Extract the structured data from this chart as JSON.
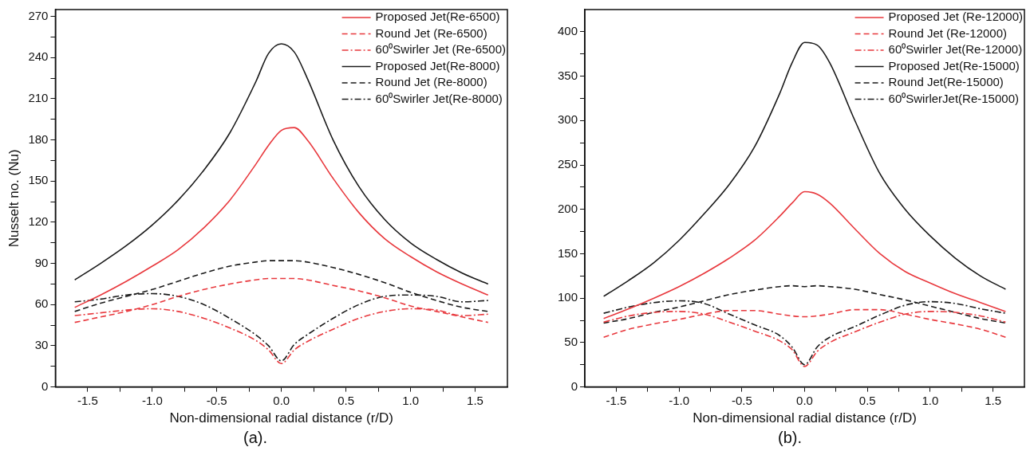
{
  "chart_data": [
    {
      "type": "line",
      "title": "(a).",
      "xlabel": "Non-dimensional radial distance (r/D)",
      "ylabel": "Nusselt no. (Nu)",
      "legend": "top right",
      "grid": false,
      "marker": "none",
      "x": [
        -1.6,
        -1.4,
        -1.2,
        -1.0,
        -0.8,
        -0.6,
        -0.4,
        -0.2,
        -0.1,
        0,
        0.1,
        0.2,
        0.4,
        0.6,
        0.8,
        1.0,
        1.2,
        1.4,
        1.6
      ],
      "xlim": [
        -1.75,
        1.75
      ],
      "xticks": [
        -1.5,
        {
          "value": -1.25,
          "label": null
        },
        {
          "value": -1,
          "label": "-1.0"
        },
        {
          "value": -0.75,
          "label": null
        },
        -0.5,
        {
          "value": -0.25,
          "label": null
        },
        {
          "value": 0,
          "label": "0.0"
        },
        {
          "value": 0.25,
          "label": null
        },
        0.5,
        {
          "value": 0.75,
          "label": null
        },
        {
          "value": 1,
          "label": "1.0"
        },
        {
          "value": 1.25,
          "label": null
        },
        1.5
      ],
      "ylim": [
        0,
        275
      ],
      "yticks": [
        0,
        {
          "value": 15,
          "label": null
        },
        30,
        {
          "value": 45,
          "label": null
        },
        60,
        {
          "value": 75,
          "label": null
        },
        90,
        {
          "value": 105,
          "label": null
        },
        120,
        {
          "value": 135,
          "label": null
        },
        150,
        {
          "value": 165,
          "label": null
        },
        180,
        {
          "value": 195,
          "label": null
        },
        210,
        {
          "value": 225,
          "label": null
        },
        240,
        {
          "value": 255,
          "label": null
        },
        270
      ],
      "series": [
        {
          "name": "Proposed Jet(Re-6500)",
          "color": "#e8383d",
          "line_style": "solid",
          "values": [
            58,
            67,
            77,
            88,
            100,
            116,
            136,
            162,
            176,
            187,
            189,
            180,
            152,
            127,
            108,
            95,
            84,
            75,
            67
          ]
        },
        {
          "name": "Round Jet (Re-6500)",
          "color": "#e8383d",
          "line_style": "dashed",
          "values": [
            47,
            51,
            55,
            60,
            66,
            71,
            75,
            78,
            79,
            79,
            79,
            78,
            74,
            70,
            65,
            59,
            55,
            51,
            47
          ]
        },
        {
          "name": "60⁰Swirler Jet (Re-6500)",
          "color": "#e8383d",
          "line_style": "dashdot",
          "values": [
            52,
            54,
            56,
            57,
            55,
            50,
            43,
            34,
            27,
            17,
            27,
            33,
            42,
            50,
            55,
            57,
            56,
            52,
            53
          ]
        },
        {
          "name": "Proposed Jet(Re-8000)",
          "color": "#1a1a1a",
          "line_style": "solid",
          "values": [
            78,
            90,
            103,
            118,
            136,
            158,
            185,
            222,
            243,
            250,
            244,
            225,
            180,
            146,
            122,
            105,
            93,
            83,
            75
          ]
        },
        {
          "name": "Round Jet (Re-8000)",
          "color": "#1a1a1a",
          "line_style": "dashed",
          "values": [
            55,
            61,
            66,
            71,
            77,
            83,
            88,
            91,
            92,
            92,
            92,
            91,
            87,
            82,
            76,
            69,
            63,
            58,
            55
          ]
        },
        {
          "name": "60⁰Swirler Jet(Re-8000)",
          "color": "#1a1a1a",
          "line_style": "dashdot",
          "values": [
            62,
            64,
            67,
            68,
            66,
            60,
            50,
            38,
            30,
            19,
            31,
            38,
            50,
            60,
            66,
            67,
            66,
            62,
            63
          ]
        }
      ]
    },
    {
      "type": "line",
      "title": "(b).",
      "xlabel": "Non-dimensional radial distance (r/D)",
      "legend": "top right",
      "grid": false,
      "marker": "none",
      "x": [
        -1.6,
        -1.4,
        -1.2,
        -1.0,
        -0.8,
        -0.6,
        -0.4,
        -0.2,
        -0.1,
        0,
        0.1,
        0.2,
        0.4,
        0.6,
        0.8,
        1.0,
        1.2,
        1.4,
        1.6
      ],
      "xlim": [
        -1.75,
        1.75
      ],
      "xticks": [
        -1.5,
        {
          "value": -1.25,
          "label": null
        },
        {
          "value": -1,
          "label": "-1.0"
        },
        {
          "value": -0.75,
          "label": null
        },
        -0.5,
        {
          "value": -0.25,
          "label": null
        },
        {
          "value": 0,
          "label": "0.0"
        },
        {
          "value": 0.25,
          "label": null
        },
        0.5,
        {
          "value": 0.75,
          "label": null
        },
        {
          "value": 1,
          "label": "1.0"
        },
        {
          "value": 1.25,
          "label": null
        },
        1.5
      ],
      "ylim": [
        0,
        425
      ],
      "yticks": [
        0,
        {
          "value": 25,
          "label": null
        },
        50,
        {
          "value": 75,
          "label": null
        },
        100,
        {
          "value": 125,
          "label": null
        },
        150,
        {
          "value": 175,
          "label": null
        },
        200,
        {
          "value": 225,
          "label": null
        },
        250,
        {
          "value": 275,
          "label": null
        },
        300,
        {
          "value": 325,
          "label": null
        },
        350,
        {
          "value": 375,
          "label": null
        },
        400
      ],
      "series": [
        {
          "name": "Proposed Jet (Re-12000)",
          "color": "#e8383d",
          "line_style": "solid",
          "values": [
            77,
            88,
            100,
            113,
            128,
            145,
            165,
            192,
            207,
            220,
            217,
            207,
            178,
            150,
            130,
            117,
            105,
            95,
            85
          ]
        },
        {
          "name": "Round Jet (Re-12000)",
          "color": "#e8383d",
          "line_style": "dashed",
          "values": [
            56,
            65,
            71,
            76,
            82,
            86,
            86,
            82,
            80,
            79,
            80,
            82,
            87,
            87,
            82,
            76,
            71,
            65,
            56
          ]
        },
        {
          "name": "60⁰Swirler Jet(Re-12000)",
          "color": "#e8383d",
          "line_style": "dashdot",
          "values": [
            73,
            80,
            84,
            85,
            82,
            73,
            63,
            52,
            42,
            23,
            40,
            50,
            62,
            73,
            82,
            85,
            84,
            80,
            73
          ]
        },
        {
          "name": "Proposed Jet(Re-15000)",
          "color": "#1a1a1a",
          "line_style": "solid",
          "values": [
            102,
            120,
            140,
            165,
            195,
            228,
            270,
            330,
            365,
            388,
            385,
            365,
            300,
            240,
            200,
            170,
            145,
            125,
            110
          ]
        },
        {
          "name": "Round Jet(Re-15000)",
          "color": "#1a1a1a",
          "line_style": "dashed",
          "values": [
            72,
            77,
            84,
            90,
            97,
            104,
            109,
            113,
            114,
            113,
            114,
            113,
            110,
            104,
            98,
            91,
            84,
            77,
            72
          ]
        },
        {
          "name": "60⁰SwirlerJet(Re-15000)",
          "color": "#1a1a1a",
          "line_style": "dashdot",
          "values": [
            83,
            90,
            95,
            97,
            94,
            82,
            70,
            58,
            45,
            25,
            45,
            56,
            68,
            81,
            92,
            96,
            94,
            88,
            83
          ]
        }
      ]
    }
  ]
}
